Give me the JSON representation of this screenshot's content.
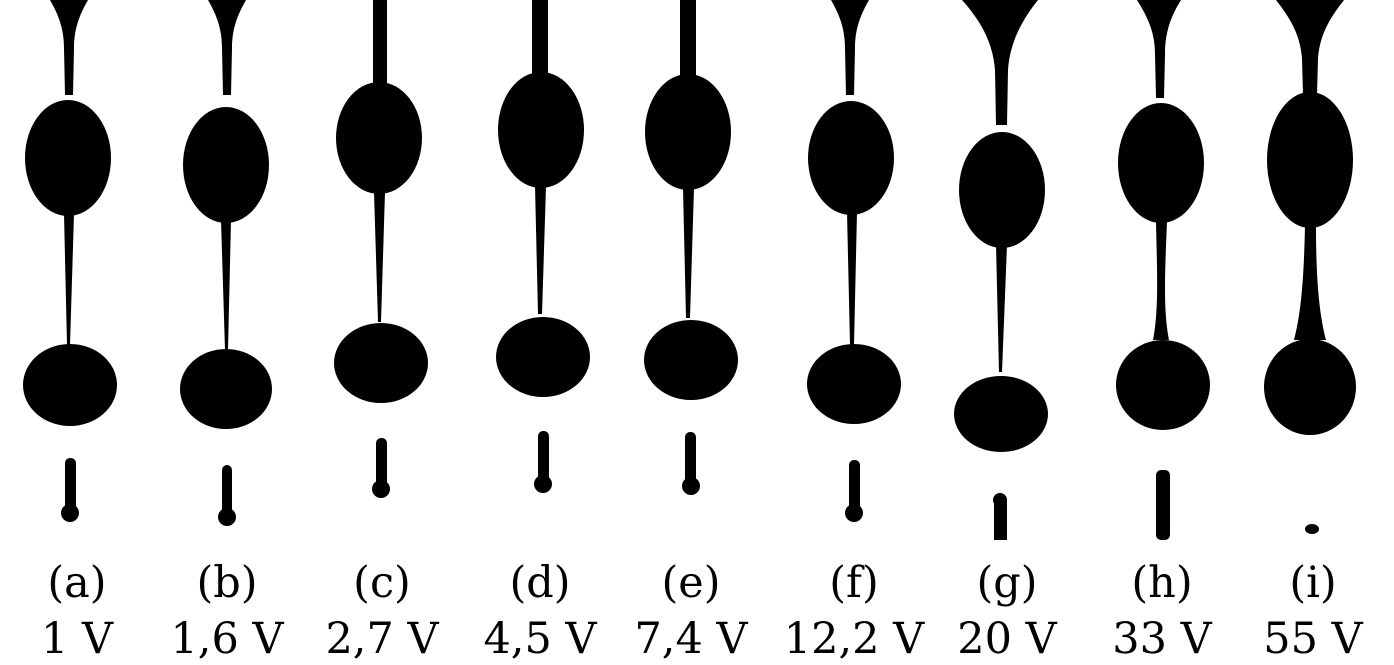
{
  "panels": [
    {
      "id": "a",
      "label": "(a)",
      "voltage": "1 V"
    },
    {
      "id": "b",
      "label": "(b)",
      "voltage": "1,6 V"
    },
    {
      "id": "c",
      "label": "(c)",
      "voltage": "2,7 V"
    },
    {
      "id": "d",
      "label": "(d)",
      "voltage": "4,5 V"
    },
    {
      "id": "e",
      "label": "(e)",
      "voltage": "7,4 V"
    },
    {
      "id": "f",
      "label": "(f)",
      "voltage": "12,2 V"
    },
    {
      "id": "g",
      "label": "(g)",
      "voltage": "20 V"
    },
    {
      "id": "h",
      "label": "(h)",
      "voltage": "33 V"
    },
    {
      "id": "i",
      "label": "(i)",
      "voltage": "55 V"
    }
  ],
  "colors": {
    "droplet": "#000000",
    "background": "#ffffff"
  }
}
